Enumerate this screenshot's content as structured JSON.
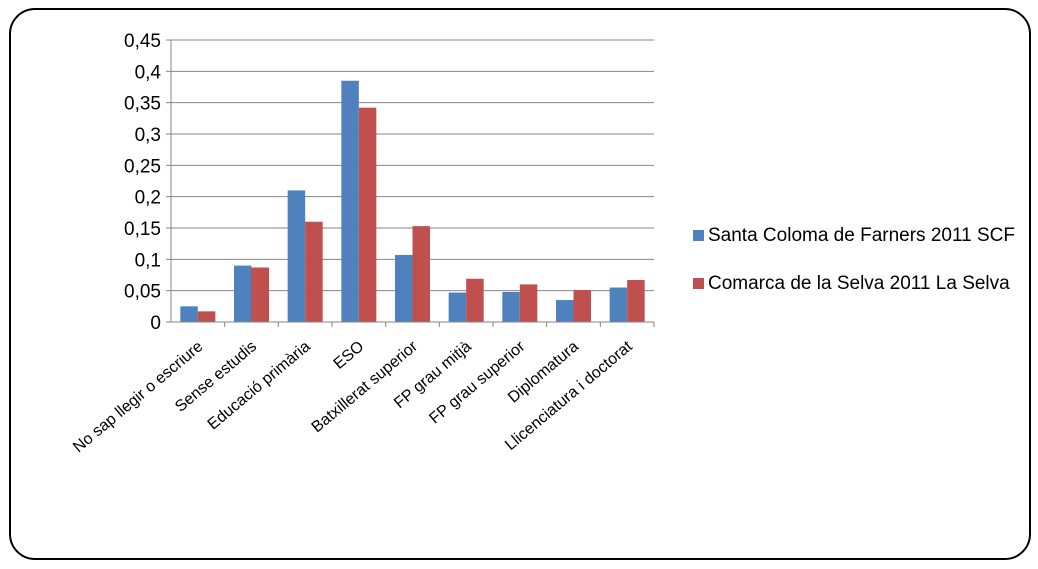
{
  "chart_data": {
    "type": "bar",
    "title": "",
    "xlabel": "",
    "ylabel": "",
    "ylim": [
      0,
      0.45
    ],
    "y_ticks": [
      "0",
      "0,05",
      "0,1",
      "0,15",
      "0,2",
      "0,25",
      "0,3",
      "0,35",
      "0,4",
      "0,45"
    ],
    "grid": true,
    "legend_position": "right",
    "categories": [
      "No sap llegir o escriure",
      "Sense estudis",
      "Educació primària",
      "ESO",
      "Batxillerat superior",
      "FP grau mitjà",
      "FP grau superior",
      "Diplomatura",
      "Llicenciatura i doctorat"
    ],
    "series": [
      {
        "name": "Santa Coloma de Farners 2011 SCF",
        "color": "#4F81BD",
        "values": [
          0.025,
          0.09,
          0.21,
          0.385,
          0.107,
          0.047,
          0.048,
          0.035,
          0.055
        ]
      },
      {
        "name": "Comarca de la Selva 2011 La Selva",
        "color": "#C0504D",
        "values": [
          0.017,
          0.087,
          0.16,
          0.342,
          0.153,
          0.069,
          0.06,
          0.051,
          0.067
        ]
      }
    ]
  }
}
